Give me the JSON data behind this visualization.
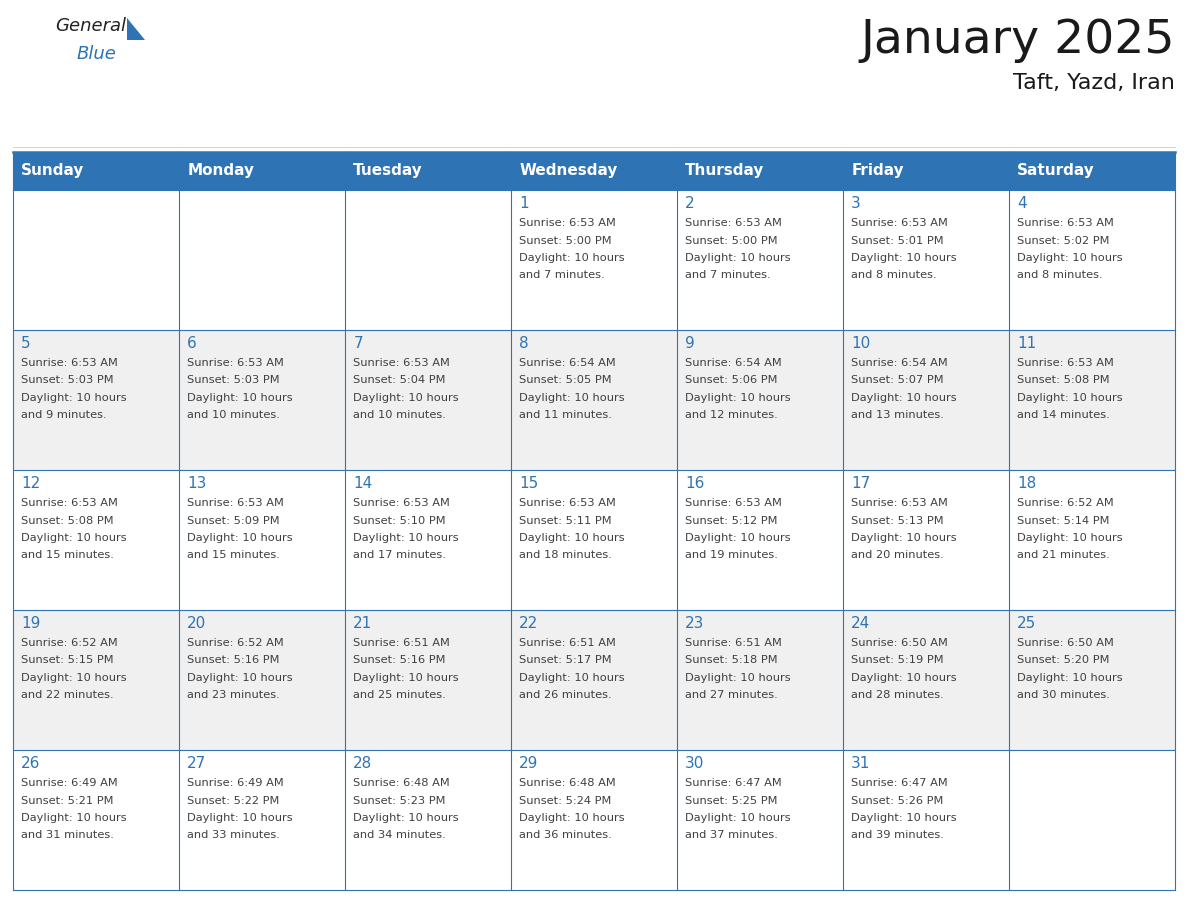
{
  "title": "January 2025",
  "subtitle": "Taft, Yazd, Iran",
  "header_color": "#2E74B5",
  "header_text_color": "#FFFFFF",
  "row_colors": [
    "#FFFFFF",
    "#F0F0F0"
  ],
  "border_color": "#2E74B5",
  "text_color": "#404040",
  "day_number_color": "#2E74B5",
  "days_of_week": [
    "Sunday",
    "Monday",
    "Tuesday",
    "Wednesday",
    "Thursday",
    "Friday",
    "Saturday"
  ],
  "calendar_data": [
    [
      {
        "day": "",
        "info": ""
      },
      {
        "day": "",
        "info": ""
      },
      {
        "day": "",
        "info": ""
      },
      {
        "day": "1",
        "info": "Sunrise: 6:53 AM\nSunset: 5:00 PM\nDaylight: 10 hours\nand 7 minutes."
      },
      {
        "day": "2",
        "info": "Sunrise: 6:53 AM\nSunset: 5:00 PM\nDaylight: 10 hours\nand 7 minutes."
      },
      {
        "day": "3",
        "info": "Sunrise: 6:53 AM\nSunset: 5:01 PM\nDaylight: 10 hours\nand 8 minutes."
      },
      {
        "day": "4",
        "info": "Sunrise: 6:53 AM\nSunset: 5:02 PM\nDaylight: 10 hours\nand 8 minutes."
      }
    ],
    [
      {
        "day": "5",
        "info": "Sunrise: 6:53 AM\nSunset: 5:03 PM\nDaylight: 10 hours\nand 9 minutes."
      },
      {
        "day": "6",
        "info": "Sunrise: 6:53 AM\nSunset: 5:03 PM\nDaylight: 10 hours\nand 10 minutes."
      },
      {
        "day": "7",
        "info": "Sunrise: 6:53 AM\nSunset: 5:04 PM\nDaylight: 10 hours\nand 10 minutes."
      },
      {
        "day": "8",
        "info": "Sunrise: 6:54 AM\nSunset: 5:05 PM\nDaylight: 10 hours\nand 11 minutes."
      },
      {
        "day": "9",
        "info": "Sunrise: 6:54 AM\nSunset: 5:06 PM\nDaylight: 10 hours\nand 12 minutes."
      },
      {
        "day": "10",
        "info": "Sunrise: 6:54 AM\nSunset: 5:07 PM\nDaylight: 10 hours\nand 13 minutes."
      },
      {
        "day": "11",
        "info": "Sunrise: 6:53 AM\nSunset: 5:08 PM\nDaylight: 10 hours\nand 14 minutes."
      }
    ],
    [
      {
        "day": "12",
        "info": "Sunrise: 6:53 AM\nSunset: 5:08 PM\nDaylight: 10 hours\nand 15 minutes."
      },
      {
        "day": "13",
        "info": "Sunrise: 6:53 AM\nSunset: 5:09 PM\nDaylight: 10 hours\nand 15 minutes."
      },
      {
        "day": "14",
        "info": "Sunrise: 6:53 AM\nSunset: 5:10 PM\nDaylight: 10 hours\nand 17 minutes."
      },
      {
        "day": "15",
        "info": "Sunrise: 6:53 AM\nSunset: 5:11 PM\nDaylight: 10 hours\nand 18 minutes."
      },
      {
        "day": "16",
        "info": "Sunrise: 6:53 AM\nSunset: 5:12 PM\nDaylight: 10 hours\nand 19 minutes."
      },
      {
        "day": "17",
        "info": "Sunrise: 6:53 AM\nSunset: 5:13 PM\nDaylight: 10 hours\nand 20 minutes."
      },
      {
        "day": "18",
        "info": "Sunrise: 6:52 AM\nSunset: 5:14 PM\nDaylight: 10 hours\nand 21 minutes."
      }
    ],
    [
      {
        "day": "19",
        "info": "Sunrise: 6:52 AM\nSunset: 5:15 PM\nDaylight: 10 hours\nand 22 minutes."
      },
      {
        "day": "20",
        "info": "Sunrise: 6:52 AM\nSunset: 5:16 PM\nDaylight: 10 hours\nand 23 minutes."
      },
      {
        "day": "21",
        "info": "Sunrise: 6:51 AM\nSunset: 5:16 PM\nDaylight: 10 hours\nand 25 minutes."
      },
      {
        "day": "22",
        "info": "Sunrise: 6:51 AM\nSunset: 5:17 PM\nDaylight: 10 hours\nand 26 minutes."
      },
      {
        "day": "23",
        "info": "Sunrise: 6:51 AM\nSunset: 5:18 PM\nDaylight: 10 hours\nand 27 minutes."
      },
      {
        "day": "24",
        "info": "Sunrise: 6:50 AM\nSunset: 5:19 PM\nDaylight: 10 hours\nand 28 minutes."
      },
      {
        "day": "25",
        "info": "Sunrise: 6:50 AM\nSunset: 5:20 PM\nDaylight: 10 hours\nand 30 minutes."
      }
    ],
    [
      {
        "day": "26",
        "info": "Sunrise: 6:49 AM\nSunset: 5:21 PM\nDaylight: 10 hours\nand 31 minutes."
      },
      {
        "day": "27",
        "info": "Sunrise: 6:49 AM\nSunset: 5:22 PM\nDaylight: 10 hours\nand 33 minutes."
      },
      {
        "day": "28",
        "info": "Sunrise: 6:48 AM\nSunset: 5:23 PM\nDaylight: 10 hours\nand 34 minutes."
      },
      {
        "day": "29",
        "info": "Sunrise: 6:48 AM\nSunset: 5:24 PM\nDaylight: 10 hours\nand 36 minutes."
      },
      {
        "day": "30",
        "info": "Sunrise: 6:47 AM\nSunset: 5:25 PM\nDaylight: 10 hours\nand 37 minutes."
      },
      {
        "day": "31",
        "info": "Sunrise: 6:47 AM\nSunset: 5:26 PM\nDaylight: 10 hours\nand 39 minutes."
      },
      {
        "day": "",
        "info": ""
      }
    ]
  ],
  "logo_general_color": "#222222",
  "logo_blue_color": "#2E74B5",
  "logo_triangle_color": "#2E74B5"
}
